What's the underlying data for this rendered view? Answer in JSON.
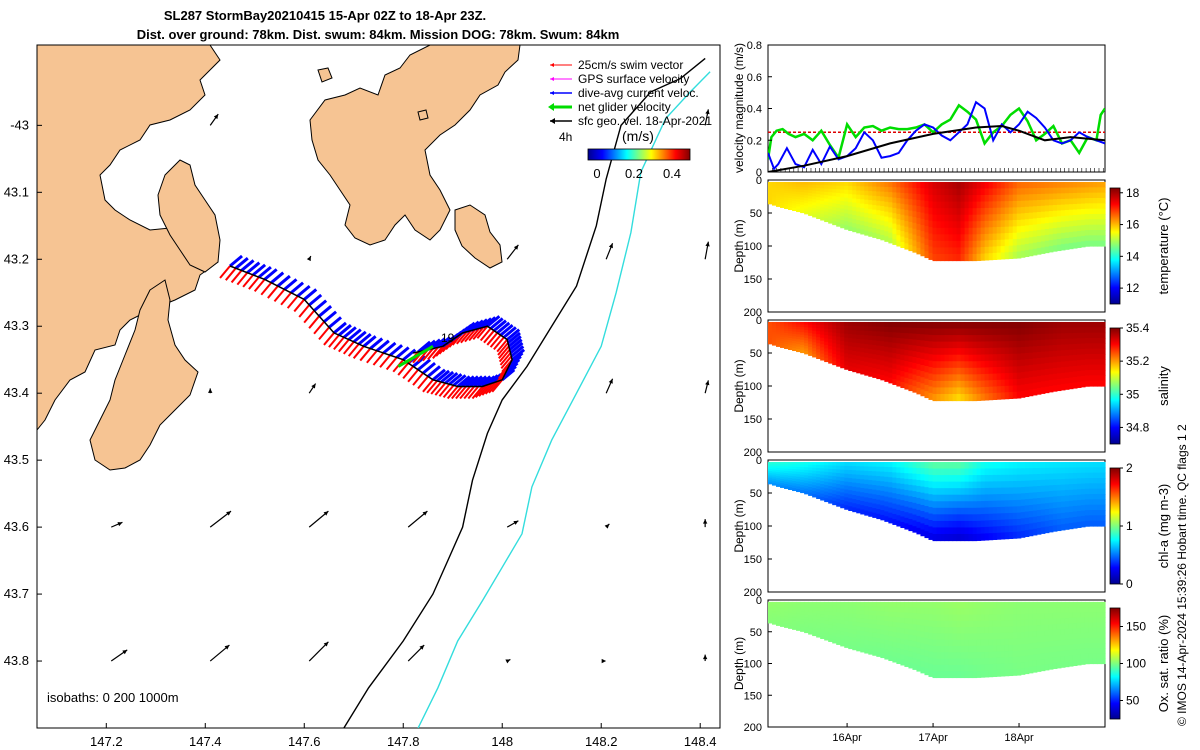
{
  "title": {
    "line1": "SL287 StormBay20210415 15-Apr 02Z to 18-Apr 23Z.",
    "line2": "Dist. over ground: 78km. Dist. swum: 84km. Mission DOG: 78km. Swum: 84km"
  },
  "colors": {
    "land": "#F6C493",
    "swim": "#FF0000",
    "gps": "#FF00FF",
    "dive_current": "#0000FF",
    "net_glider": "#00DD00",
    "sfc_geo": "#000000",
    "isobath_200": "#000000",
    "isobath_1000": "#33DDDD",
    "mean_speed": "#DD0000"
  },
  "chart_data": [
    {
      "type": "map",
      "id": "map",
      "xlim": [
        147.06,
        148.44
      ],
      "ylim": [
        -43.9,
        -42.88
      ],
      "xticks": [
        147.2,
        147.4,
        147.6,
        147.8,
        148,
        148.2,
        148.4
      ],
      "xtick_labels": [
        "147.2",
        "147.4",
        "147.6",
        "147.8",
        "148",
        "148.2",
        "148.4"
      ],
      "yticks": [
        -43,
        -43.1,
        -43.2,
        -43.3,
        -43.4,
        -43.5,
        -43.6,
        -43.7,
        -43.8
      ],
      "ytick_labels": [
        "-43",
        "43.1",
        "43.2",
        "43.3",
        "43.4",
        "43.5",
        "43.6",
        "43.7",
        "43.8"
      ],
      "legend": [
        {
          "label": "25cm/s swim vector",
          "color": "#FF0000"
        },
        {
          "label": "GPS surface velocity",
          "color": "#FF00FF"
        },
        {
          "label": "dive-avg current veloc.",
          "color": "#0000FF"
        },
        {
          "label": "net glider velocity",
          "color": "#00DD00"
        },
        {
          "label": "sfc geo. vel. 18-Apr-2021",
          "color": "#000000"
        }
      ],
      "legend_position": "top-right",
      "duration_label": "4h",
      "colorbar": {
        "label": "(m/s)",
        "ticks": [
          0,
          0.2,
          0.4
        ],
        "tick_labels": [
          "0",
          "0.2",
          "0.4"
        ],
        "range": [
          0,
          0.5
        ]
      },
      "isobath_label": "isobaths: 0   200  1000m",
      "track_label": "19",
      "track": [
        [
          147.45,
          -43.21
        ],
        [
          147.52,
          -43.23
        ],
        [
          147.6,
          -43.26
        ],
        [
          147.66,
          -43.31
        ],
        [
          147.72,
          -43.33
        ],
        [
          147.8,
          -43.35
        ],
        [
          147.86,
          -43.38
        ],
        [
          147.91,
          -43.39
        ],
        [
          147.96,
          -43.39
        ],
        [
          148.0,
          -43.38
        ],
        [
          148.02,
          -43.35
        ],
        [
          148.01,
          -43.32
        ],
        [
          147.97,
          -43.3
        ],
        [
          147.92,
          -43.31
        ],
        [
          147.88,
          -43.33
        ],
        [
          147.82,
          -43.34
        ]
      ],
      "net_velocity": {
        "from": [
          147.86,
          -43.33
        ],
        "to": [
          147.79,
          -43.36
        ]
      },
      "isobath_200": [
        [
          147.68,
          -43.9
        ],
        [
          147.73,
          -43.84
        ],
        [
          147.8,
          -43.77
        ],
        [
          147.86,
          -43.7
        ],
        [
          147.89,
          -43.65
        ],
        [
          147.92,
          -43.6
        ],
        [
          147.94,
          -43.53
        ],
        [
          147.97,
          -43.46
        ],
        [
          148.0,
          -43.41
        ],
        [
          148.05,
          -43.36
        ],
        [
          148.1,
          -43.3
        ],
        [
          148.15,
          -43.24
        ],
        [
          148.19,
          -43.15
        ],
        [
          148.21,
          -43.08
        ],
        [
          148.24,
          -43.0
        ],
        [
          148.3,
          -42.95
        ],
        [
          148.36,
          -42.93
        ],
        [
          148.41,
          -42.9
        ]
      ],
      "isobath_1000": [
        [
          147.83,
          -43.9
        ],
        [
          147.87,
          -43.84
        ],
        [
          147.91,
          -43.77
        ],
        [
          147.96,
          -43.71
        ],
        [
          148.0,
          -43.66
        ],
        [
          148.04,
          -43.61
        ],
        [
          148.06,
          -43.54
        ],
        [
          148.1,
          -43.47
        ],
        [
          148.15,
          -43.4
        ],
        [
          148.2,
          -43.33
        ],
        [
          148.23,
          -43.25
        ],
        [
          148.26,
          -43.16
        ],
        [
          148.28,
          -43.07
        ],
        [
          148.33,
          -42.99
        ],
        [
          148.38,
          -42.95
        ],
        [
          148.42,
          -42.92
        ]
      ],
      "geo_arrows": [
        {
          "lon": 147.21,
          "lat": -43.6,
          "u": 0.07,
          "v": 0.03
        },
        {
          "lon": 147.41,
          "lat": -43.6,
          "u": 0.13,
          "v": 0.1
        },
        {
          "lon": 147.61,
          "lat": -43.6,
          "u": 0.12,
          "v": 0.1
        },
        {
          "lon": 147.81,
          "lat": -43.6,
          "u": 0.12,
          "v": 0.1
        },
        {
          "lon": 148.01,
          "lat": -43.6,
          "u": 0.07,
          "v": 0.04
        },
        {
          "lon": 148.21,
          "lat": -43.6,
          "u": 0.02,
          "v": 0.02
        },
        {
          "lon": 148.41,
          "lat": -43.6,
          "u": 0.0,
          "v": 0.05
        },
        {
          "lon": 147.21,
          "lat": -43.8,
          "u": 0.1,
          "v": 0.07
        },
        {
          "lon": 147.41,
          "lat": -43.8,
          "u": 0.12,
          "v": 0.1
        },
        {
          "lon": 147.61,
          "lat": -43.8,
          "u": 0.12,
          "v": 0.12
        },
        {
          "lon": 147.81,
          "lat": -43.8,
          "u": 0.1,
          "v": 0.1
        },
        {
          "lon": 148.01,
          "lat": -43.8,
          "u": 0.02,
          "v": 0.01
        },
        {
          "lon": 148.21,
          "lat": -43.8,
          "u": 0.0,
          "v": 0.0
        },
        {
          "lon": 148.41,
          "lat": -43.8,
          "u": 0.0,
          "v": 0.04
        },
        {
          "lon": 147.41,
          "lat": -43.4,
          "u": 0.0,
          "v": 0.03
        },
        {
          "lon": 147.61,
          "lat": -43.4,
          "u": 0.04,
          "v": 0.06
        },
        {
          "lon": 148.21,
          "lat": -43.4,
          "u": 0.04,
          "v": 0.09
        },
        {
          "lon": 148.41,
          "lat": -43.4,
          "u": 0.02,
          "v": 0.08
        },
        {
          "lon": 148.01,
          "lat": -43.2,
          "u": 0.07,
          "v": 0.09
        },
        {
          "lon": 148.21,
          "lat": -43.2,
          "u": 0.04,
          "v": 0.1
        },
        {
          "lon": 148.41,
          "lat": -43.2,
          "u": 0.02,
          "v": 0.11
        },
        {
          "lon": 147.61,
          "lat": -43.2,
          "u": 0.01,
          "v": 0.02
        },
        {
          "lon": 147.41,
          "lat": -43.0,
          "u": 0.05,
          "v": 0.07
        },
        {
          "lon": 148.41,
          "lat": -43.0,
          "u": 0.02,
          "v": 0.1
        }
      ]
    },
    {
      "type": "line",
      "id": "velocity",
      "ylabel": "velocity magnitude (m/s)",
      "ylim": [
        0,
        0.8
      ],
      "yticks": [
        0,
        0.2,
        0.4,
        0.6,
        0.8
      ],
      "ytick_labels": [
        "0",
        "0.2",
        "0.4",
        "0.6",
        "0.8"
      ],
      "xlim": [
        15.08,
        19.0
      ],
      "series": [
        {
          "name": "net glider velocity",
          "color": "#00DD00",
          "x": [
            15.08,
            15.12,
            15.18,
            15.25,
            15.32,
            15.4,
            15.5,
            15.6,
            15.7,
            15.8,
            15.9,
            16.0,
            16.1,
            16.2,
            16.3,
            16.4,
            16.5,
            16.6,
            16.7,
            16.8,
            16.9,
            17.0,
            17.1,
            17.2,
            17.3,
            17.4,
            17.5,
            17.6,
            17.7,
            17.8,
            17.9,
            18.0,
            18.1,
            18.2,
            18.3,
            18.4,
            18.5,
            18.6,
            18.7,
            18.8,
            18.9,
            18.95,
            19.0
          ],
          "values": [
            0.08,
            0.22,
            0.26,
            0.27,
            0.24,
            0.22,
            0.24,
            0.2,
            0.26,
            0.17,
            0.09,
            0.3,
            0.22,
            0.28,
            0.29,
            0.26,
            0.28,
            0.27,
            0.27,
            0.28,
            0.3,
            0.25,
            0.3,
            0.33,
            0.42,
            0.38,
            0.33,
            0.18,
            0.25,
            0.29,
            0.36,
            0.4,
            0.32,
            0.2,
            0.24,
            0.29,
            0.18,
            0.2,
            0.12,
            0.22,
            0.2,
            0.36,
            0.4
          ]
        },
        {
          "name": "dive-avg current veloc.",
          "color": "#0000FF",
          "x": [
            15.08,
            15.15,
            15.2,
            15.3,
            15.4,
            15.5,
            15.6,
            15.7,
            15.8,
            15.9,
            16.0,
            16.1,
            16.2,
            16.3,
            16.4,
            16.5,
            16.6,
            16.7,
            16.8,
            16.9,
            17.0,
            17.1,
            17.2,
            17.3,
            17.4,
            17.5,
            17.6,
            17.7,
            17.8,
            17.9,
            18.0,
            18.1,
            18.2,
            18.3,
            18.4,
            18.5,
            18.6,
            18.7,
            18.8,
            18.9,
            19.0
          ],
          "values": [
            0.12,
            0.02,
            0.05,
            0.15,
            0.05,
            0.03,
            0.14,
            0.05,
            0.16,
            0.08,
            0.1,
            0.15,
            0.25,
            0.2,
            0.09,
            0.1,
            0.12,
            0.2,
            0.26,
            0.3,
            0.28,
            0.23,
            0.2,
            0.25,
            0.3,
            0.44,
            0.4,
            0.2,
            0.3,
            0.25,
            0.3,
            0.38,
            0.34,
            0.28,
            0.2,
            0.18,
            0.2,
            0.25,
            0.22,
            0.2,
            0.18
          ]
        },
        {
          "name": "sfc geo. vel.",
          "color": "#000000",
          "x": [
            15.08,
            15.5,
            16.0,
            16.5,
            17.0,
            17.5,
            17.8,
            18.0,
            18.3,
            18.6,
            19.0
          ],
          "values": [
            0.0,
            0.04,
            0.1,
            0.18,
            0.24,
            0.28,
            0.29,
            0.26,
            0.2,
            0.22,
            0.2
          ]
        },
        {
          "name": "mean swim speed",
          "color": "#DD0000",
          "x": [
            15.08,
            19.0
          ],
          "values": [
            0.25,
            0.25
          ]
        }
      ]
    },
    {
      "type": "heatmap",
      "id": "temperature",
      "ylabel": "Depth (m)",
      "cbar_label": "temperature (°C)",
      "clim": [
        11,
        18.3
      ],
      "cbar_ticks": [
        12,
        14,
        16,
        18
      ],
      "cbar_tick_labels": [
        "12",
        "14",
        "16",
        "18"
      ],
      "ylim": [
        0,
        200
      ],
      "yticks": [
        0,
        50,
        100,
        150,
        200
      ],
      "ytick_labels": [
        "0",
        "50",
        "100",
        "150",
        "200"
      ],
      "bottom_profile": {
        "x": [
          15.08,
          15.2,
          15.5,
          15.8,
          16.0,
          16.4,
          16.8,
          17.0,
          17.5,
          18.0,
          18.4,
          18.8,
          19.0
        ],
        "depth": [
          35,
          40,
          50,
          65,
          75,
          90,
          110,
          122,
          122,
          118,
          108,
          100,
          100
        ]
      },
      "field": {
        "x": [
          15.08,
          15.5,
          16.0,
          16.5,
          17.0,
          17.3,
          17.6,
          18.0,
          18.5,
          19.0
        ],
        "surface": [
          15.8,
          16.0,
          15.8,
          16.5,
          17.6,
          18.0,
          17.4,
          16.6,
          16.4,
          16.2
        ],
        "bottom": [
          15.8,
          15.4,
          14.8,
          15.0,
          16.8,
          17.0,
          15.8,
          14.9,
          14.6,
          14.6
        ]
      }
    },
    {
      "type": "heatmap",
      "id": "salinity",
      "ylabel": "Depth (m)",
      "cbar_label": "salinity",
      "clim": [
        34.7,
        35.4
      ],
      "cbar_ticks": [
        34.8,
        35,
        35.2,
        35.4
      ],
      "cbar_tick_labels": [
        "34.8",
        "35",
        "35.2",
        "35.4"
      ],
      "ylim": [
        0,
        200
      ],
      "yticks": [
        0,
        50,
        100,
        150,
        200
      ],
      "ytick_labels": [
        "0",
        "50",
        "100",
        "150",
        "200"
      ],
      "bottom_profile": {
        "x": [
          15.08,
          15.2,
          15.5,
          15.8,
          16.0,
          16.4,
          16.8,
          17.0,
          17.5,
          18.0,
          18.4,
          18.8,
          19.0
        ],
        "depth": [
          35,
          40,
          50,
          65,
          75,
          90,
          110,
          122,
          122,
          118,
          108,
          100,
          100
        ]
      },
      "field": {
        "x": [
          15.08,
          15.5,
          16.0,
          16.5,
          17.0,
          17.3,
          17.6,
          18.0,
          18.5,
          19.0
        ],
        "surface": [
          35.25,
          35.3,
          35.38,
          35.4,
          35.4,
          35.4,
          35.4,
          35.4,
          35.38,
          35.38
        ],
        "bottom": [
          35.25,
          35.2,
          35.32,
          35.3,
          35.2,
          35.15,
          35.22,
          35.3,
          35.3,
          35.3
        ]
      }
    },
    {
      "type": "heatmap",
      "id": "chl",
      "ylabel": "Depth (m)",
      "cbar_label": "chl-a (mg m-3)",
      "clim": [
        0,
        2
      ],
      "cbar_ticks": [
        0,
        1,
        2
      ],
      "cbar_tick_labels": [
        "0",
        "1",
        "2"
      ],
      "ylim": [
        0,
        200
      ],
      "yticks": [
        0,
        50,
        100,
        150,
        200
      ],
      "ytick_labels": [
        "0",
        "50",
        "100",
        "150",
        "200"
      ],
      "bottom_profile": {
        "x": [
          15.08,
          15.2,
          15.5,
          15.8,
          16.0,
          16.4,
          16.8,
          17.0,
          17.5,
          18.0,
          18.4,
          18.8,
          19.0
        ],
        "depth": [
          35,
          40,
          50,
          65,
          75,
          90,
          110,
          122,
          122,
          118,
          108,
          100,
          100
        ]
      },
      "field": {
        "x": [
          15.08,
          15.5,
          16.0,
          16.5,
          17.0,
          17.3,
          17.6,
          18.0,
          18.5,
          19.0
        ],
        "surface": [
          0.85,
          0.8,
          0.7,
          0.75,
          0.95,
          0.95,
          0.8,
          0.75,
          0.72,
          0.7
        ],
        "bottom": [
          0.55,
          0.5,
          0.35,
          0.3,
          0.2,
          0.15,
          0.25,
          0.35,
          0.45,
          0.45
        ]
      }
    },
    {
      "type": "heatmap",
      "id": "oxygen",
      "ylabel": "Depth (m)",
      "cbar_label": "Ox. sat. ratio (%)",
      "clim": [
        25,
        175
      ],
      "cbar_ticks": [
        50,
        100,
        150
      ],
      "cbar_tick_labels": [
        "50",
        "100",
        "150"
      ],
      "ylim": [
        0,
        200
      ],
      "yticks": [
        0,
        50,
        100,
        150,
        200
      ],
      "ytick_labels": [
        "0",
        "50",
        "100",
        "150",
        "200"
      ],
      "xticks": [
        16,
        17,
        18
      ],
      "xtick_labels": [
        "16Apr",
        "17Apr",
        "18Apr"
      ],
      "bottom_profile": {
        "x": [
          15.08,
          15.2,
          15.5,
          15.8,
          16.0,
          16.4,
          16.8,
          17.0,
          17.5,
          18.0,
          18.4,
          18.8,
          19.0
        ],
        "depth": [
          35,
          40,
          50,
          65,
          75,
          90,
          110,
          122,
          122,
          118,
          108,
          100,
          100
        ]
      },
      "field": {
        "x": [
          15.08,
          15.5,
          16.0,
          16.5,
          17.0,
          17.3,
          17.6,
          18.0,
          18.5,
          19.0
        ],
        "surface": [
          103,
          102,
          102,
          103,
          103,
          104,
          103,
          102,
          102,
          102
        ],
        "bottom": [
          101,
          100,
          99,
          98,
          97,
          97,
          98,
          99,
          99,
          99
        ]
      }
    }
  ],
  "footer": "© IMOS 14-Apr-2024 15:39:26 Hobart time. QC flags 1  2"
}
